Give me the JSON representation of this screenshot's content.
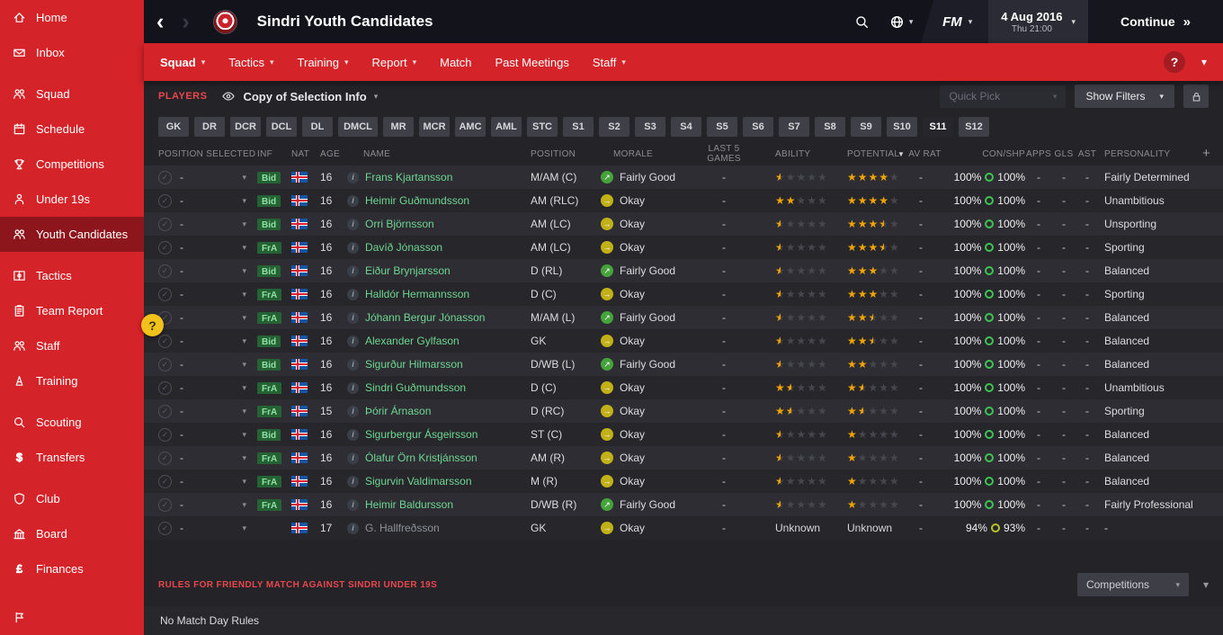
{
  "colors": {
    "sidebar_red": "#d42329",
    "sidebar_red_active": "#8d161c",
    "topbar_bg": "#13131c",
    "nav_red": "#d42329",
    "content_bg": "#232328",
    "row_even": "#2d2d33",
    "row_odd": "#26262b",
    "name_link": "#6fd792",
    "star_gold": "#efa300",
    "star_empty": "#46464e",
    "morale_good": "#46a33c",
    "morale_okay": "#c2b018",
    "badge_bg": "#256335",
    "badge_text": "#8fe0a4",
    "donut_green": "#3ec452",
    "donut_warn": "#b9c22c",
    "rules_red": "#e8474e",
    "chip_bg": "#3f3f47",
    "panel_btn_bg": "#3e3e46"
  },
  "icons": {
    "caret_down": "▾",
    "back": "‹",
    "forward": "›",
    "continue_arrow": "»",
    "sort_desc": "▼",
    "check": "✓",
    "info": "i",
    "morale_good_arrow": "↗",
    "morale_okay_arrow": "→",
    "add_column": "+"
  },
  "sidebar": {
    "items": [
      {
        "label": "Home",
        "icon": "home-icon"
      },
      {
        "label": "Inbox",
        "icon": "inbox-icon"
      },
      {
        "label": "Squad",
        "icon": "squad-icon",
        "gap": true
      },
      {
        "label": "Schedule",
        "icon": "schedule-icon"
      },
      {
        "label": "Competitions",
        "icon": "competitions-icon"
      },
      {
        "label": "Under 19s",
        "icon": "under19s-icon"
      },
      {
        "label": "Youth Candidates",
        "icon": "youth-candidates-icon",
        "active": true
      },
      {
        "label": "Tactics",
        "icon": "tactics-icon",
        "gap": true
      },
      {
        "label": "Team Report",
        "icon": "team-report-icon"
      },
      {
        "label": "Staff",
        "icon": "staff-icon"
      },
      {
        "label": "Training",
        "icon": "training-icon"
      },
      {
        "label": "Scouting",
        "icon": "scouting-icon",
        "gap": true
      },
      {
        "label": "Transfers",
        "icon": "transfers-icon"
      },
      {
        "label": "Club",
        "icon": "club-icon",
        "gap": true
      },
      {
        "label": "Board",
        "icon": "board-icon"
      },
      {
        "label": "Finances",
        "icon": "finances-icon"
      }
    ]
  },
  "topbar": {
    "title": "Sindri Youth Candidates",
    "fm_label": "FM",
    "date_line1": "4 Aug 2016",
    "date_line2": "Thu 21:00",
    "continue_label": "Continue"
  },
  "nav": {
    "items": [
      {
        "label": "Squad",
        "caret": true,
        "active": true
      },
      {
        "label": "Tactics",
        "caret": true
      },
      {
        "label": "Training",
        "caret": true
      },
      {
        "label": "Report",
        "caret": true
      },
      {
        "label": "Match",
        "caret": false
      },
      {
        "label": "Past Meetings",
        "caret": false
      },
      {
        "label": "Staff",
        "caret": true
      }
    ],
    "help_label": "?"
  },
  "toolbar": {
    "players_label": "PLAYERS",
    "view_label": "Copy of Selection Info",
    "quick_pick_label": "Quick Pick",
    "show_filters_label": "Show Filters"
  },
  "filters": [
    {
      "label": "GK"
    },
    {
      "label": "DR"
    },
    {
      "label": "DCR"
    },
    {
      "label": "DCL"
    },
    {
      "label": "DL"
    },
    {
      "label": "DMCL"
    },
    {
      "label": "MR"
    },
    {
      "label": "MCR"
    },
    {
      "label": "AMC"
    },
    {
      "label": "AML"
    },
    {
      "label": "STC"
    },
    {
      "label": "S1"
    },
    {
      "label": "S2"
    },
    {
      "label": "S3"
    },
    {
      "label": "S4"
    },
    {
      "label": "S5"
    },
    {
      "label": "S6"
    },
    {
      "label": "S7"
    },
    {
      "label": "S8"
    },
    {
      "label": "S9"
    },
    {
      "label": "S10"
    },
    {
      "label": "S11",
      "active": true
    },
    {
      "label": "S12"
    }
  ],
  "table": {
    "headers": [
      "POSITION SELECTED",
      "INF",
      "NAT",
      "AGE",
      "NAME",
      "POSITION",
      "MORALE",
      "LAST 5 GAMES",
      "ABILITY",
      "POTENTIAL",
      "AV RAT",
      "CON/SHP",
      "APPS",
      "GLS",
      "AST",
      "PERSONALITY"
    ],
    "sorted_column": "POTENTIAL",
    "rows": [
      {
        "sel": "-",
        "inf": "Bid",
        "nat": "ISL",
        "age": "16",
        "name": "Frans Kjartansson",
        "position": "M/AM (C)",
        "morale": "Fairly Good",
        "morale_level": "good",
        "last5": "-",
        "ability": 0.5,
        "potential": 4,
        "avrat": "-",
        "con": "100%",
        "shp": "100%",
        "apps": "-",
        "gls": "-",
        "ast": "-",
        "personality": "Fairly Determined"
      },
      {
        "sel": "-",
        "inf": "Bid",
        "nat": "ISL",
        "age": "16",
        "name": "Heimir Guðmundsson",
        "position": "AM (RLC)",
        "morale": "Okay",
        "morale_level": "okay",
        "last5": "-",
        "ability": 2,
        "potential": 4,
        "avrat": "-",
        "con": "100%",
        "shp": "100%",
        "apps": "-",
        "gls": "-",
        "ast": "-",
        "personality": "Unambitious"
      },
      {
        "sel": "-",
        "inf": "Bid",
        "nat": "ISL",
        "age": "16",
        "name": "Orri Björnsson",
        "position": "AM (LC)",
        "morale": "Okay",
        "morale_level": "okay",
        "last5": "-",
        "ability": 0.5,
        "potential": 3.5,
        "avrat": "-",
        "con": "100%",
        "shp": "100%",
        "apps": "-",
        "gls": "-",
        "ast": "-",
        "personality": "Unsporting"
      },
      {
        "sel": "-",
        "inf": "FrA",
        "nat": "ISL",
        "age": "16",
        "name": "Davíð Jónasson",
        "position": "AM (LC)",
        "morale": "Okay",
        "morale_level": "okay",
        "last5": "-",
        "ability": 0.5,
        "potential": 3.5,
        "avrat": "-",
        "con": "100%",
        "shp": "100%",
        "apps": "-",
        "gls": "-",
        "ast": "-",
        "personality": "Sporting"
      },
      {
        "sel": "-",
        "inf": "Bid",
        "nat": "ISL",
        "age": "16",
        "name": "Eiður Brynjarsson",
        "position": "D (RL)",
        "morale": "Fairly Good",
        "morale_level": "good",
        "last5": "-",
        "ability": 0.5,
        "potential": 3,
        "avrat": "-",
        "con": "100%",
        "shp": "100%",
        "apps": "-",
        "gls": "-",
        "ast": "-",
        "personality": "Balanced"
      },
      {
        "sel": "-",
        "inf": "FrA",
        "nat": "ISL",
        "age": "16",
        "name": "Halldór Hermannsson",
        "position": "D (C)",
        "morale": "Okay",
        "morale_level": "okay",
        "last5": "-",
        "ability": 0.5,
        "potential": 3,
        "avrat": "-",
        "con": "100%",
        "shp": "100%",
        "apps": "-",
        "gls": "-",
        "ast": "-",
        "personality": "Sporting"
      },
      {
        "sel": "-",
        "inf": "FrA",
        "nat": "ISL",
        "age": "16",
        "name": "Jóhann Bergur Jónasson",
        "position": "M/AM (L)",
        "morale": "Fairly Good",
        "morale_level": "good",
        "last5": "-",
        "ability": 0.5,
        "potential": 2.5,
        "avrat": "-",
        "con": "100%",
        "shp": "100%",
        "apps": "-",
        "gls": "-",
        "ast": "-",
        "personality": "Balanced"
      },
      {
        "sel": "-",
        "inf": "Bid",
        "nat": "ISL",
        "age": "16",
        "name": "Alexander Gylfason",
        "position": "GK",
        "morale": "Okay",
        "morale_level": "okay",
        "last5": "-",
        "ability": 0.5,
        "potential": 2.5,
        "avrat": "-",
        "con": "100%",
        "shp": "100%",
        "apps": "-",
        "gls": "-",
        "ast": "-",
        "personality": "Balanced"
      },
      {
        "sel": "-",
        "inf": "Bid",
        "nat": "ISL",
        "age": "16",
        "name": "Sigurður Hilmarsson",
        "position": "D/WB (L)",
        "morale": "Fairly Good",
        "morale_level": "good",
        "last5": "-",
        "ability": 0.5,
        "potential": 2,
        "avrat": "-",
        "con": "100%",
        "shp": "100%",
        "apps": "-",
        "gls": "-",
        "ast": "-",
        "personality": "Balanced"
      },
      {
        "sel": "-",
        "inf": "FrA",
        "nat": "ISL",
        "age": "16",
        "name": "Sindri Guðmundsson",
        "position": "D (C)",
        "morale": "Okay",
        "morale_level": "okay",
        "last5": "-",
        "ability": 1.5,
        "potential": 1.5,
        "avrat": "-",
        "con": "100%",
        "shp": "100%",
        "apps": "-",
        "gls": "-",
        "ast": "-",
        "personality": "Unambitious"
      },
      {
        "sel": "-",
        "inf": "FrA",
        "nat": "ISL",
        "age": "15",
        "name": "Þórir Árnason",
        "position": "D (RC)",
        "morale": "Okay",
        "morale_level": "okay",
        "last5": "-",
        "ability": 1.5,
        "potential": 1.5,
        "avrat": "-",
        "con": "100%",
        "shp": "100%",
        "apps": "-",
        "gls": "-",
        "ast": "-",
        "personality": "Sporting"
      },
      {
        "sel": "-",
        "inf": "Bid",
        "nat": "ISL",
        "age": "16",
        "name": "Sigurbergur Ásgeirsson",
        "position": "ST (C)",
        "morale": "Okay",
        "morale_level": "okay",
        "last5": "-",
        "ability": 0.5,
        "potential": 1,
        "avrat": "-",
        "con": "100%",
        "shp": "100%",
        "apps": "-",
        "gls": "-",
        "ast": "-",
        "personality": "Balanced"
      },
      {
        "sel": "-",
        "inf": "FrA",
        "nat": "ISL",
        "age": "16",
        "name": "Ólafur Örn Kristjánsson",
        "position": "AM (R)",
        "morale": "Okay",
        "morale_level": "okay",
        "last5": "-",
        "ability": 0.5,
        "potential": 1,
        "avrat": "-",
        "con": "100%",
        "shp": "100%",
        "apps": "-",
        "gls": "-",
        "ast": "-",
        "personality": "Balanced"
      },
      {
        "sel": "-",
        "inf": "FrA",
        "nat": "ISL",
        "age": "16",
        "name": "Sigurvin Valdimarsson",
        "position": "M (R)",
        "morale": "Okay",
        "morale_level": "okay",
        "last5": "-",
        "ability": 0.5,
        "potential": 1,
        "avrat": "-",
        "con": "100%",
        "shp": "100%",
        "apps": "-",
        "gls": "-",
        "ast": "-",
        "personality": "Balanced"
      },
      {
        "sel": "-",
        "inf": "FrA",
        "nat": "ISL",
        "age": "16",
        "name": "Heimir Baldursson",
        "position": "D/WB (R)",
        "morale": "Fairly Good",
        "morale_level": "good",
        "last5": "-",
        "ability": 0.5,
        "potential": 1,
        "avrat": "-",
        "con": "100%",
        "shp": "100%",
        "apps": "-",
        "gls": "-",
        "ast": "-",
        "personality": "Fairly Professional"
      },
      {
        "sel": "-",
        "inf": "",
        "nat": "ISL",
        "age": "17",
        "name": "G. Hallfreðsson",
        "position": "GK",
        "morale": "Okay",
        "morale_level": "okay",
        "last5": "-",
        "ability": "Unknown",
        "potential": "Unknown",
        "avrat": "-",
        "con": "94%",
        "shp": "93%",
        "con_level": "warn",
        "apps": "-",
        "gls": "-",
        "ast": "-",
        "personality": "-",
        "greyed": true
      }
    ]
  },
  "footer": {
    "rules_label": "RULES FOR FRIENDLY MATCH AGAINST SINDRI UNDER 19S",
    "competitions_label": "Competitions",
    "no_rules_label": "No Match Day Rules"
  }
}
